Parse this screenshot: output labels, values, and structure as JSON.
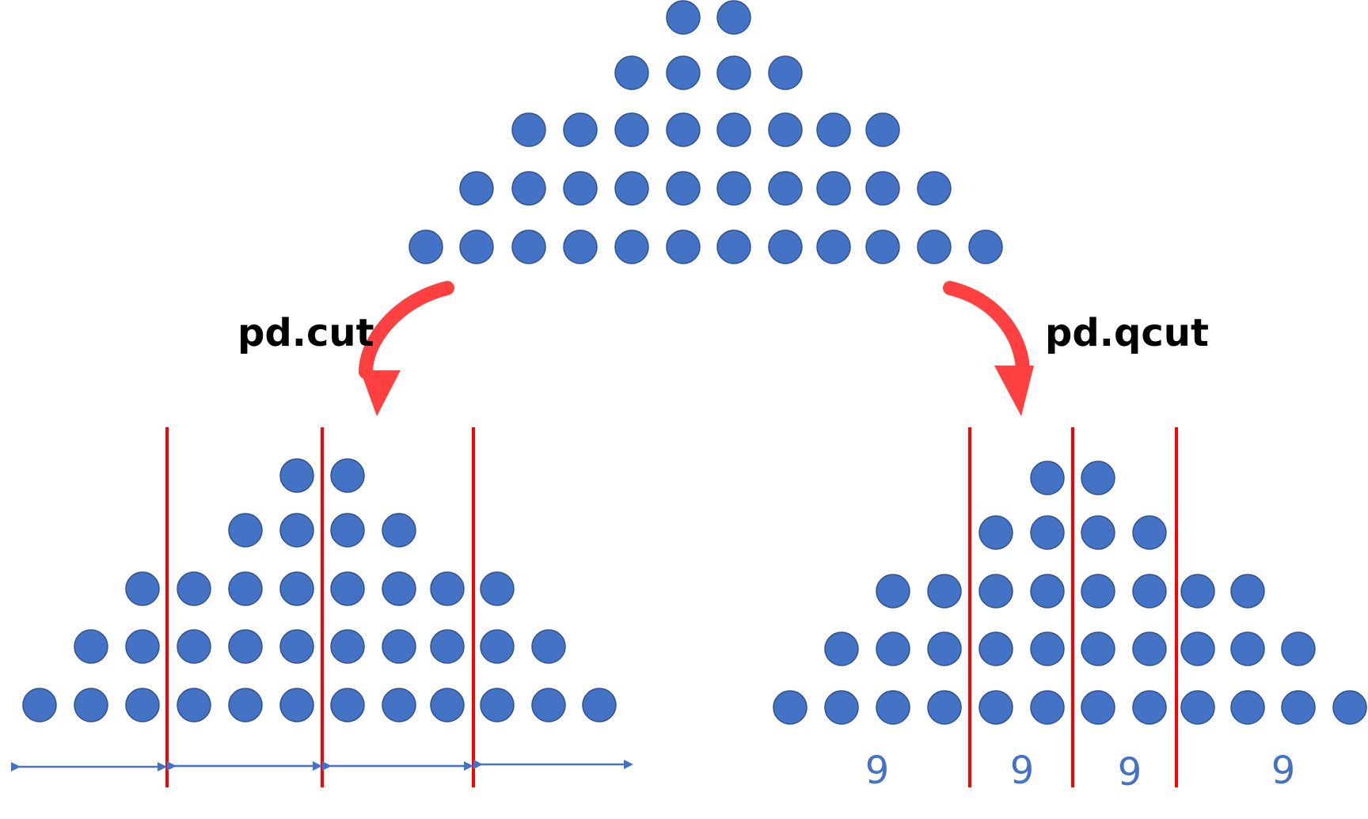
{
  "labels": {
    "cut": "pd.cut",
    "qcut": "pd.qcut"
  },
  "qcut_counts": [
    "9",
    "9",
    "9",
    "9"
  ],
  "colors": {
    "dot": "#4472C4",
    "dot_stroke": "#2F528F",
    "cut_line": "#FF0000",
    "arrow": "#FF4040",
    "count_text": "#4472C4"
  }
}
